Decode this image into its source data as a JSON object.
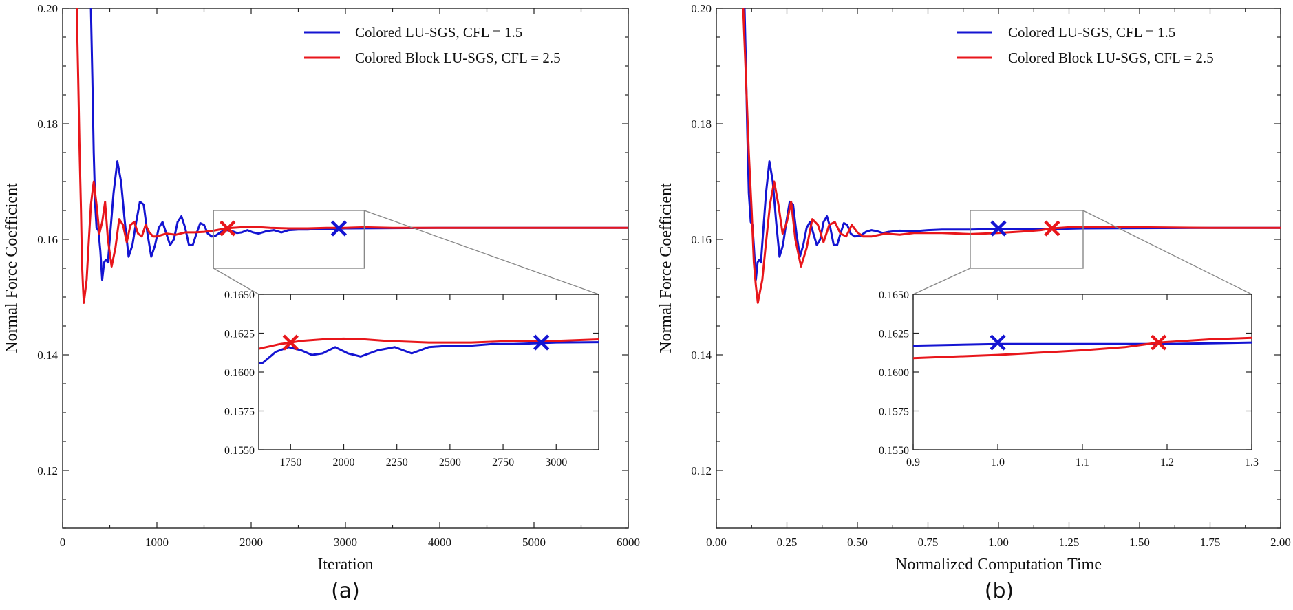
{
  "chart_data": [
    {
      "panel": "a",
      "type": "line",
      "caption": "(a)",
      "xlabel": "Iteration",
      "ylabel": "Normal Force Coefficient",
      "xlim": [
        0,
        6000
      ],
      "ylim": [
        0.11,
        0.2
      ],
      "xticks": [
        0,
        1000,
        2000,
        3000,
        4000,
        5000,
        6000
      ],
      "xtick_labels": [
        "0",
        "1000",
        "2000",
        "3000",
        "4000",
        "5000",
        "6000"
      ],
      "yticks": [
        0.12,
        0.14,
        0.16,
        0.18,
        0.2
      ],
      "ytick_labels": [
        "0.12",
        "0.14",
        "0.16",
        "0.18",
        "0.20"
      ],
      "legend": [
        "Colored LU-SGS, CFL = 1.5",
        "Colored Block LU-SGS, CFL = 2.5"
      ],
      "legend_position": "top-right",
      "series": [
        {
          "name": "Colored LU-SGS, CFL = 1.5",
          "color": "#1414d2",
          "points": [
            [
              300,
              0.2
            ],
            [
              315,
              0.188
            ],
            [
              330,
              0.175
            ],
            [
              345,
              0.166
            ],
            [
              360,
              0.162
            ],
            [
              380,
              0.1615
            ],
            [
              400,
              0.158
            ],
            [
              420,
              0.153
            ],
            [
              440,
              0.156
            ],
            [
              460,
              0.1565
            ],
            [
              480,
              0.156
            ],
            [
              500,
              0.16
            ],
            [
              540,
              0.168
            ],
            [
              580,
              0.1735
            ],
            [
              620,
              0.17
            ],
            [
              660,
              0.163
            ],
            [
              700,
              0.157
            ],
            [
              740,
              0.159
            ],
            [
              780,
              0.163
            ],
            [
              820,
              0.1665
            ],
            [
              860,
              0.166
            ],
            [
              900,
              0.161
            ],
            [
              940,
              0.157
            ],
            [
              980,
              0.159
            ],
            [
              1020,
              0.162
            ],
            [
              1060,
              0.163
            ],
            [
              1100,
              0.161
            ],
            [
              1140,
              0.159
            ],
            [
              1180,
              0.16
            ],
            [
              1220,
              0.163
            ],
            [
              1260,
              0.164
            ],
            [
              1300,
              0.162
            ],
            [
              1340,
              0.159
            ],
            [
              1380,
              0.159
            ],
            [
              1420,
              0.161
            ],
            [
              1460,
              0.1628
            ],
            [
              1500,
              0.1625
            ],
            [
              1540,
              0.161
            ],
            [
              1580,
              0.1605
            ],
            [
              1620,
              0.1606
            ],
            [
              1680,
              0.1613
            ],
            [
              1740,
              0.1616
            ],
            [
              1800,
              0.1614
            ],
            [
              1850,
              0.1611
            ],
            [
              1900,
              0.1612
            ],
            [
              1960,
              0.1616
            ],
            [
              2020,
              0.1612
            ],
            [
              2080,
              0.161
            ],
            [
              2160,
              0.1614
            ],
            [
              2240,
              0.1616
            ],
            [
              2320,
              0.1612
            ],
            [
              2400,
              0.1616
            ],
            [
              2500,
              0.1617
            ],
            [
              2600,
              0.1617
            ],
            [
              2700,
              0.1618
            ],
            [
              2800,
              0.1618
            ],
            [
              3000,
              0.1619
            ],
            [
              3500,
              0.16195
            ],
            [
              4000,
              0.162
            ],
            [
              5000,
              0.162
            ],
            [
              6000,
              0.162
            ]
          ]
        },
        {
          "name": "Colored Block LU-SGS, CFL = 2.5",
          "color": "#e8161b",
          "points": [
            [
              150,
              0.2
            ],
            [
              165,
              0.188
            ],
            [
              180,
              0.175
            ],
            [
              195,
              0.165
            ],
            [
              205,
              0.156
            ],
            [
              215,
              0.152
            ],
            [
              225,
              0.149
            ],
            [
              240,
              0.151
            ],
            [
              255,
              0.153
            ],
            [
              275,
              0.159
            ],
            [
              300,
              0.166
            ],
            [
              330,
              0.17
            ],
            [
              360,
              0.166
            ],
            [
              390,
              0.161
            ],
            [
              420,
              0.163
            ],
            [
              450,
              0.1665
            ],
            [
              480,
              0.16
            ],
            [
              520,
              0.1553
            ],
            [
              560,
              0.1585
            ],
            [
              600,
              0.1635
            ],
            [
              640,
              0.1625
            ],
            [
              680,
              0.1595
            ],
            [
              720,
              0.1625
            ],
            [
              760,
              0.163
            ],
            [
              800,
              0.161
            ],
            [
              840,
              0.1605
            ],
            [
              880,
              0.1625
            ],
            [
              920,
              0.1612
            ],
            [
              960,
              0.1605
            ],
            [
              1000,
              0.1605
            ],
            [
              1100,
              0.161
            ],
            [
              1200,
              0.1608
            ],
            [
              1300,
              0.1612
            ],
            [
              1400,
              0.1612
            ],
            [
              1500,
              0.1613
            ],
            [
              1600,
              0.1615
            ],
            [
              1700,
              0.1618
            ],
            [
              1750,
              0.1619
            ],
            [
              1800,
              0.162
            ],
            [
              1900,
              0.1621
            ],
            [
              2000,
              0.16215
            ],
            [
              2100,
              0.1621
            ],
            [
              2200,
              0.162
            ],
            [
              2400,
              0.1619
            ],
            [
              2600,
              0.1619
            ],
            [
              2800,
              0.162
            ],
            [
              3000,
              0.162
            ],
            [
              3200,
              0.1621
            ],
            [
              3500,
              0.162
            ],
            [
              4000,
              0.162
            ],
            [
              5000,
              0.162
            ],
            [
              6000,
              0.162
            ]
          ]
        }
      ],
      "markers": [
        {
          "x": 1750,
          "y": 0.1619,
          "color": "#e8161b",
          "symbol": "x"
        },
        {
          "x": 2930,
          "y": 0.1619,
          "color": "#1414d2",
          "symbol": "x"
        }
      ],
      "inset": {
        "zoom_box": {
          "x": [
            1600,
            3200
          ],
          "y": [
            0.155,
            0.165
          ]
        },
        "xlim": [
          1600,
          3200
        ],
        "ylim": [
          0.155,
          0.165
        ],
        "xticks": [
          1750,
          2000,
          2250,
          2500,
          2750,
          3000
        ],
        "xtick_labels": [
          "1750",
          "2000",
          "2250",
          "2500",
          "2750",
          "3000"
        ],
        "yticks": [
          0.155,
          0.1575,
          0.16,
          0.1625,
          0.165
        ],
        "ytick_labels": [
          "0.1550",
          "0.1575",
          "0.1600",
          "0.1625",
          "0.1650"
        ]
      }
    },
    {
      "panel": "b",
      "type": "line",
      "caption": "(b)",
      "xlabel": "Normalized Computation Time",
      "ylabel": "Normal Force Coefficient",
      "xlim": [
        0,
        2
      ],
      "ylim": [
        0.11,
        0.2
      ],
      "xticks": [
        0,
        0.25,
        0.5,
        0.75,
        1.0,
        1.25,
        1.5,
        1.75,
        2.0
      ],
      "xtick_labels": [
        "0.00",
        "0.25",
        "0.50",
        "0.75",
        "1.00",
        "1.25",
        "1.50",
        "1.75",
        "2.00"
      ],
      "yticks": [
        0.12,
        0.14,
        0.16,
        0.18,
        0.2
      ],
      "ytick_labels": [
        "0.12",
        "0.14",
        "0.16",
        "0.18",
        "0.20"
      ],
      "legend": [
        "Colored LU-SGS, CFL = 1.5",
        "Colored Block LU-SGS, CFL = 2.5"
      ],
      "legend_position": "top-right",
      "series": [
        {
          "name": "Colored LU-SGS, CFL = 1.5",
          "color": "#1414d2",
          "points": [
            [
              0.1,
              0.2
            ],
            [
              0.105,
              0.19
            ],
            [
              0.11,
              0.178
            ],
            [
              0.115,
              0.168
            ],
            [
              0.122,
              0.163
            ],
            [
              0.128,
              0.1625
            ],
            [
              0.134,
              0.158
            ],
            [
              0.14,
              0.153
            ],
            [
              0.146,
              0.156
            ],
            [
              0.152,
              0.1565
            ],
            [
              0.158,
              0.156
            ],
            [
              0.164,
              0.16
            ],
            [
              0.176,
              0.168
            ],
            [
              0.188,
              0.1735
            ],
            [
              0.2,
              0.17
            ],
            [
              0.212,
              0.163
            ],
            [
              0.224,
              0.157
            ],
            [
              0.236,
              0.159
            ],
            [
              0.248,
              0.163
            ],
            [
              0.26,
              0.1665
            ],
            [
              0.272,
              0.166
            ],
            [
              0.284,
              0.161
            ],
            [
              0.296,
              0.157
            ],
            [
              0.308,
              0.159
            ],
            [
              0.32,
              0.162
            ],
            [
              0.332,
              0.163
            ],
            [
              0.344,
              0.161
            ],
            [
              0.356,
              0.159
            ],
            [
              0.368,
              0.16
            ],
            [
              0.38,
              0.163
            ],
            [
              0.392,
              0.164
            ],
            [
              0.404,
              0.162
            ],
            [
              0.416,
              0.159
            ],
            [
              0.428,
              0.159
            ],
            [
              0.44,
              0.161
            ],
            [
              0.452,
              0.1628
            ],
            [
              0.464,
              0.1625
            ],
            [
              0.476,
              0.161
            ],
            [
              0.49,
              0.1605
            ],
            [
              0.51,
              0.1606
            ],
            [
              0.53,
              0.1613
            ],
            [
              0.55,
              0.1616
            ],
            [
              0.57,
              0.1614
            ],
            [
              0.59,
              0.1611
            ],
            [
              0.61,
              0.1613
            ],
            [
              0.65,
              0.1615
            ],
            [
              0.7,
              0.1614
            ],
            [
              0.75,
              0.1616
            ],
            [
              0.8,
              0.1617
            ],
            [
              0.85,
              0.1617
            ],
            [
              0.9,
              0.1617
            ],
            [
              1.0,
              0.1618
            ],
            [
              1.1,
              0.1618
            ],
            [
              1.2,
              0.1618
            ],
            [
              1.3,
              0.1619
            ],
            [
              1.5,
              0.16195
            ],
            [
              1.75,
              0.162
            ],
            [
              2.0,
              0.162
            ]
          ]
        },
        {
          "name": "Colored Block LU-SGS, CFL = 2.5",
          "color": "#e8161b",
          "points": [
            [
              0.095,
              0.2
            ],
            [
              0.105,
              0.188
            ],
            [
              0.115,
              0.175
            ],
            [
              0.125,
              0.165
            ],
            [
              0.133,
              0.156
            ],
            [
              0.14,
              0.152
            ],
            [
              0.147,
              0.149
            ],
            [
              0.155,
              0.151
            ],
            [
              0.163,
              0.153
            ],
            [
              0.175,
              0.159
            ],
            [
              0.19,
              0.166
            ],
            [
              0.205,
              0.17
            ],
            [
              0.22,
              0.166
            ],
            [
              0.235,
              0.161
            ],
            [
              0.25,
              0.163
            ],
            [
              0.265,
              0.1665
            ],
            [
              0.28,
              0.16
            ],
            [
              0.3,
              0.1553
            ],
            [
              0.32,
              0.1585
            ],
            [
              0.34,
              0.1635
            ],
            [
              0.36,
              0.1625
            ],
            [
              0.38,
              0.1595
            ],
            [
              0.4,
              0.1625
            ],
            [
              0.42,
              0.163
            ],
            [
              0.44,
              0.161
            ],
            [
              0.46,
              0.1605
            ],
            [
              0.48,
              0.1625
            ],
            [
              0.5,
              0.1612
            ],
            [
              0.52,
              0.1605
            ],
            [
              0.55,
              0.1605
            ],
            [
              0.6,
              0.161
            ],
            [
              0.65,
              0.1608
            ],
            [
              0.7,
              0.1611
            ],
            [
              0.8,
              0.1611
            ],
            [
              0.9,
              0.1609
            ],
            [
              1.0,
              0.1611
            ],
            [
              1.1,
              0.1614
            ],
            [
              1.15,
              0.1616
            ],
            [
              1.19,
              0.1619
            ],
            [
              1.25,
              0.1621
            ],
            [
              1.3,
              0.1622
            ],
            [
              1.4,
              0.1622
            ],
            [
              1.5,
              0.1621
            ],
            [
              1.75,
              0.162
            ],
            [
              2.0,
              0.162
            ]
          ]
        }
      ],
      "markers": [
        {
          "x": 1.0,
          "y": 0.1619,
          "color": "#1414d2",
          "symbol": "x"
        },
        {
          "x": 1.19,
          "y": 0.1619,
          "color": "#e8161b",
          "symbol": "x"
        }
      ],
      "inset": {
        "zoom_box": {
          "x": [
            0.9,
            1.3
          ],
          "y": [
            0.155,
            0.165
          ]
        },
        "xlim": [
          0.9,
          1.3
        ],
        "ylim": [
          0.155,
          0.165
        ],
        "xticks": [
          0.9,
          1.0,
          1.1,
          1.2,
          1.3
        ],
        "xtick_labels": [
          "0.9",
          "1.0",
          "1.1",
          "1.2",
          "1.3"
        ],
        "yticks": [
          0.155,
          0.1575,
          0.16,
          0.1625,
          0.165
        ],
        "ytick_labels": [
          "0.1550",
          "0.1575",
          "0.1600",
          "0.1625",
          "0.1650"
        ]
      }
    }
  ]
}
